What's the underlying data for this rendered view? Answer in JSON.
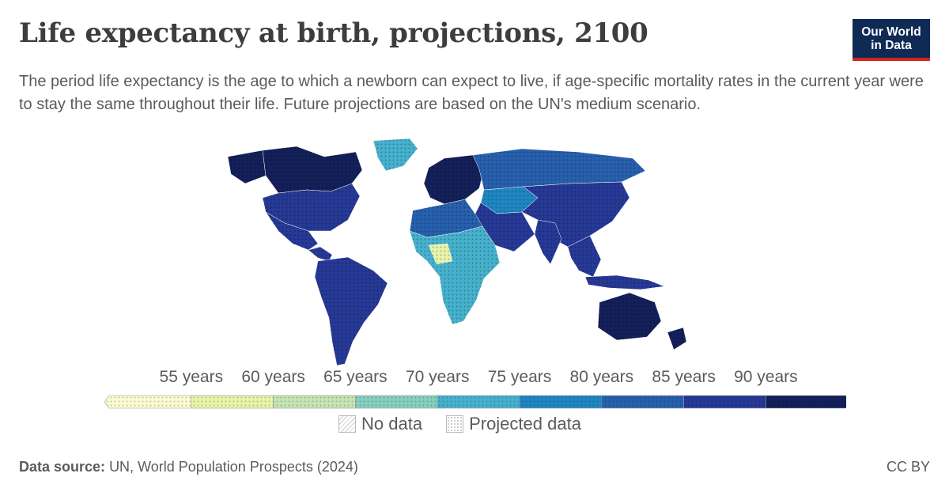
{
  "header": {
    "title": "Life expectancy at birth, projections, 2100",
    "subtitle": "The period life expectancy is the age to which a newborn can expect to live, if age-specific mortality rates in the current year were to stay the same throughout their life. Future projections are based on the UN's medium scenario."
  },
  "logo": {
    "line1": "Our World",
    "line2": "in Data",
    "bg_color": "#0f2a55",
    "accent_color": "#ce261e"
  },
  "legend": {
    "ticks": [
      "55 years",
      "60 years",
      "65 years",
      "70 years",
      "75 years",
      "80 years",
      "85 years",
      "90 years"
    ],
    "bins": [
      {
        "color": "#fbfbd3"
      },
      {
        "color": "#e9f3a9"
      },
      {
        "color": "#c4e5b3"
      },
      {
        "color": "#86cfbe"
      },
      {
        "color": "#46b1cc"
      },
      {
        "color": "#1f86c1"
      },
      {
        "color": "#2760ad"
      },
      {
        "color": "#263996"
      },
      {
        "color": "#132059"
      }
    ],
    "no_data_label": "No data",
    "projected_label": "Projected data"
  },
  "footer": {
    "source_label": "Data source:",
    "source_text": "UN, World Population Prospects (2024)",
    "license": "CC BY"
  },
  "map": {
    "year": "2100",
    "regions": [
      {
        "name": "North America",
        "value_range": "85-90+ years",
        "color": "#132059"
      },
      {
        "name": "Latin America",
        "value_range": "80-90 years",
        "color": "#263996"
      },
      {
        "name": "Europe",
        "value_range": "90+ years",
        "color": "#132059"
      },
      {
        "name": "Russia",
        "value_range": "80-85 years",
        "color": "#2760ad"
      },
      {
        "name": "Greenland",
        "value_range": "75-80 years",
        "color": "#46b1cc"
      },
      {
        "name": "Asia",
        "value_range": "80-90 years",
        "color": "#263996"
      },
      {
        "name": "Central Asia",
        "value_range": "75-80 years",
        "color": "#1f86c1"
      },
      {
        "name": "Middle East",
        "value_range": "85-90+ years",
        "color": "#263996"
      },
      {
        "name": "North Africa",
        "value_range": "80-85 years",
        "color": "#2760ad"
      },
      {
        "name": "Sub-Saharan Africa",
        "value_range": "65-80 years",
        "color": "#46b1cc"
      },
      {
        "name": "Nigeria",
        "value_range": "55-65 years",
        "color": "#e9f3a9"
      },
      {
        "name": "Oceania",
        "value_range": "90+ years",
        "color": "#132059"
      }
    ]
  }
}
